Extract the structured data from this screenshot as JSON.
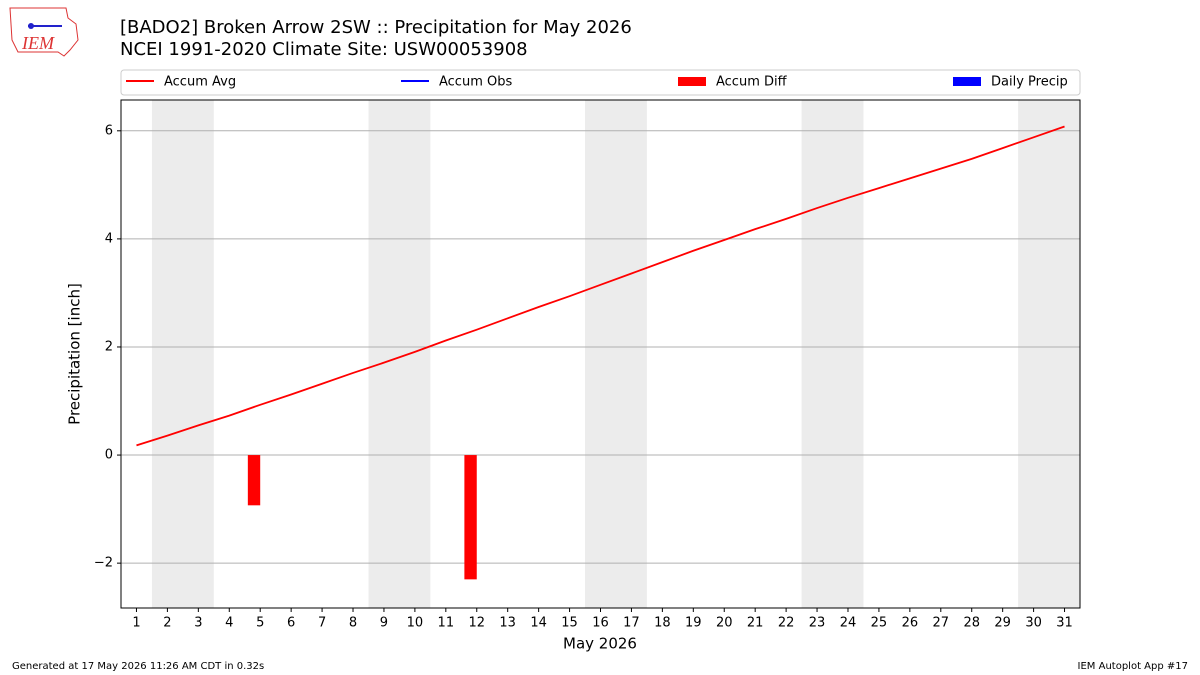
{
  "chart_data": {
    "type": "line",
    "title": "[BADO2] Broken Arrow 2SW :: Precipitation for May 2026",
    "subtitle": "NCEI 1991-2020 Climate Site: USW00053908",
    "logo_text": "IEM",
    "xlabel": "May 2026",
    "ylabel": "Precipitation [inch]",
    "footer_left": "Generated at 17 May 2026 11:26 AM CDT in 0.32s",
    "footer_right": "IEM Autoplot App #17",
    "x": [
      1,
      2,
      3,
      4,
      5,
      6,
      7,
      8,
      9,
      10,
      11,
      12,
      13,
      14,
      15,
      16,
      17,
      18,
      19,
      20,
      21,
      22,
      23,
      24,
      25,
      26,
      27,
      28,
      29,
      30,
      31
    ],
    "series": [
      {
        "name": "Accum Avg",
        "color": "#ff0000",
        "kind": "line",
        "values": [
          0.18,
          0.36,
          0.55,
          0.73,
          0.93,
          1.12,
          1.32,
          1.52,
          1.71,
          1.91,
          2.12,
          2.32,
          2.53,
          2.74,
          2.94,
          3.15,
          3.36,
          3.57,
          3.78,
          3.98,
          4.18,
          4.37,
          4.57,
          4.76,
          4.94,
          5.12,
          5.3,
          5.48,
          5.68,
          5.88,
          6.08
        ]
      },
      {
        "name": "Accum Obs",
        "color": "#0000ff",
        "kind": "line",
        "values": [
          null,
          null,
          null,
          null,
          null,
          null,
          null,
          null,
          null,
          null,
          null,
          null,
          null,
          null,
          null,
          null,
          null,
          null,
          null,
          null,
          null,
          null,
          null,
          null,
          null,
          null,
          null,
          null,
          null,
          null,
          null
        ]
      },
      {
        "name": "Accum Diff",
        "color": "#ff0000",
        "kind": "bar",
        "values": [
          null,
          null,
          null,
          null,
          -0.93,
          null,
          null,
          null,
          null,
          null,
          null,
          -2.3,
          null,
          null,
          null,
          null,
          null,
          null,
          null,
          null,
          null,
          null,
          null,
          null,
          null,
          null,
          null,
          null,
          null,
          null,
          null
        ]
      },
      {
        "name": "Daily Precip",
        "color": "#0000ff",
        "kind": "bar",
        "values": [
          null,
          null,
          null,
          null,
          null,
          null,
          null,
          null,
          null,
          null,
          null,
          null,
          null,
          null,
          null,
          null,
          null,
          null,
          null,
          null,
          null,
          null,
          null,
          null,
          null,
          null,
          null,
          null,
          null,
          null,
          null
        ]
      }
    ],
    "shaded_spans": [
      [
        1.5,
        3.5
      ],
      [
        8.5,
        10.5
      ],
      [
        15.5,
        17.5
      ],
      [
        22.5,
        24.5
      ],
      [
        29.5,
        31.5
      ]
    ],
    "xlim": [
      0.5,
      31.5
    ],
    "xticks": [
      1,
      2,
      3,
      4,
      5,
      6,
      7,
      8,
      9,
      10,
      11,
      12,
      13,
      14,
      15,
      16,
      17,
      18,
      19,
      20,
      21,
      22,
      23,
      24,
      25,
      26,
      27,
      28,
      29,
      30,
      31
    ],
    "ylim": [
      -2.83,
      6.57
    ],
    "yticks": [
      {
        "value": -2,
        "label": "−2"
      },
      0,
      2,
      4,
      6
    ],
    "grid": true
  }
}
